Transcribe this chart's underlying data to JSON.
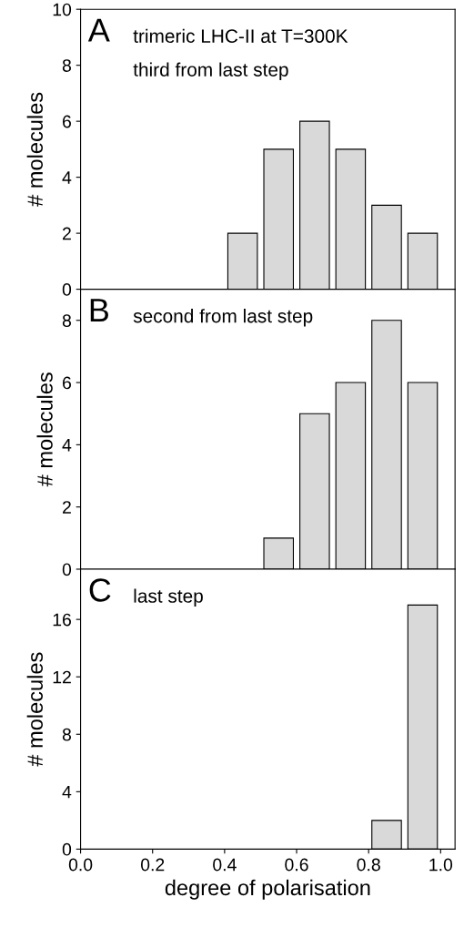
{
  "chart_data": [
    {
      "type": "histogram",
      "ylabel": "# molecules",
      "annotations": [
        "A",
        "trimeric LHC-II at T=300K",
        "third from last step"
      ],
      "bins": [
        0.4,
        0.5,
        0.6,
        0.7,
        0.8,
        0.9,
        1.0
      ],
      "values": [
        2,
        5,
        6,
        5,
        3,
        2
      ],
      "color": "#d9d9d9",
      "xlim": [
        0.0,
        1.04
      ],
      "ylim": [
        0,
        10
      ],
      "yticks": [
        0,
        2,
        4,
        6,
        8,
        10
      ],
      "tick_labels": "y",
      "grid": false,
      "legend": false
    },
    {
      "type": "histogram",
      "ylabel": "# molecules",
      "annotations": [
        "B",
        "second from last step"
      ],
      "bins": [
        0.5,
        0.6,
        0.7,
        0.8,
        0.9,
        1.0
      ],
      "values": [
        1,
        5,
        6,
        8,
        6
      ],
      "color": "#d9d9d9",
      "xlim": [
        0.0,
        1.04
      ],
      "ylim": [
        0,
        9
      ],
      "yticks": [
        0,
        2,
        4,
        6,
        8
      ],
      "tick_labels": "y",
      "grid": false,
      "legend": false
    },
    {
      "type": "histogram",
      "ylabel": "# molecules",
      "xlabel": "degree of polarisation",
      "annotations": [
        "C",
        "last step"
      ],
      "bins": [
        0.8,
        0.9,
        1.0
      ],
      "values": [
        2,
        17
      ],
      "color": "#d9d9d9",
      "xlim": [
        0.0,
        1.04
      ],
      "xticks": [
        {
          "value": 0.0,
          "label": "0.0"
        },
        {
          "value": 0.2,
          "label": "0.2"
        },
        {
          "value": 0.4,
          "label": "0.4"
        },
        {
          "value": 0.6,
          "label": "0.6"
        },
        {
          "value": 0.8,
          "label": "0.8"
        },
        {
          "value": 1.0,
          "label": "1.0"
        }
      ],
      "ylim": [
        0,
        19.5
      ],
      "yticks": [
        0,
        4,
        8,
        12,
        16
      ],
      "grid": false,
      "legend": false
    }
  ]
}
